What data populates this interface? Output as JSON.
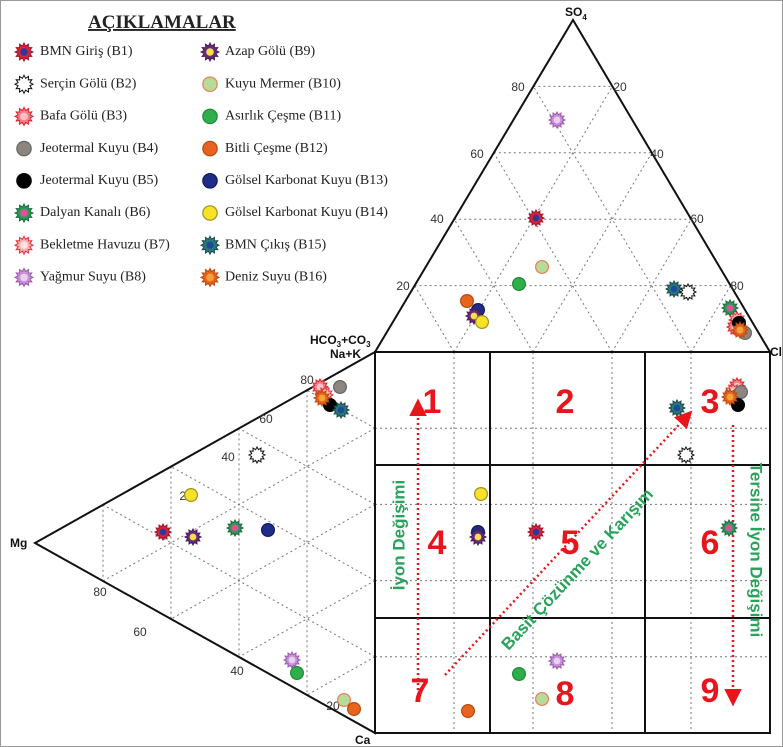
{
  "legend_title": "AÇIKLAMALAR",
  "legend": [
    "BMN Giriş (B1)",
    "Serçin Gölü (B2)",
    "Bafa Gölü (B3)",
    "Jeotermal Kuyu (B4)",
    "Jeotermal Kuyu (B5)",
    "Dalyan Kanalı (B6)",
    "Bekletme Havuzu (B7)",
    "Yağmur Suyu (B8)",
    "Azap Gölü (B9)",
    "Kuyu Mermer (B10)",
    "Asırlık Çeşme (B11)",
    "Bitli Çeşme (B12)",
    "Gölsel Karbonat Kuyu (B13)",
    "Gölsel Karbonat Kuyu (B14)",
    "BMN Çıkış (B15)",
    "Deniz Suyu (B16)"
  ],
  "axis_labels": {
    "so4": [
      "SO",
      "4"
    ],
    "cl": "Cl",
    "hco3": [
      "HCO",
      "3",
      "+CO",
      "3"
    ],
    "nak": "Na+K",
    "mg": "Mg",
    "ca": "Ca"
  },
  "ticks": {
    "top_left": [
      "80",
      "60",
      "40",
      "20"
    ],
    "top_right": [
      "20",
      "40",
      "60",
      "80"
    ],
    "left_top": [
      "80",
      "60",
      "40",
      "20"
    ],
    "left_bottom": [
      "80",
      "60",
      "40",
      "20"
    ]
  },
  "regions": [
    "1",
    "2",
    "3",
    "4",
    "5",
    "6",
    "7",
    "8",
    "9"
  ],
  "arrows": [
    "İyon Değişimi",
    "Basit Çözünme ve Karışım",
    "Tersine İyon Değişimi"
  ]
}
